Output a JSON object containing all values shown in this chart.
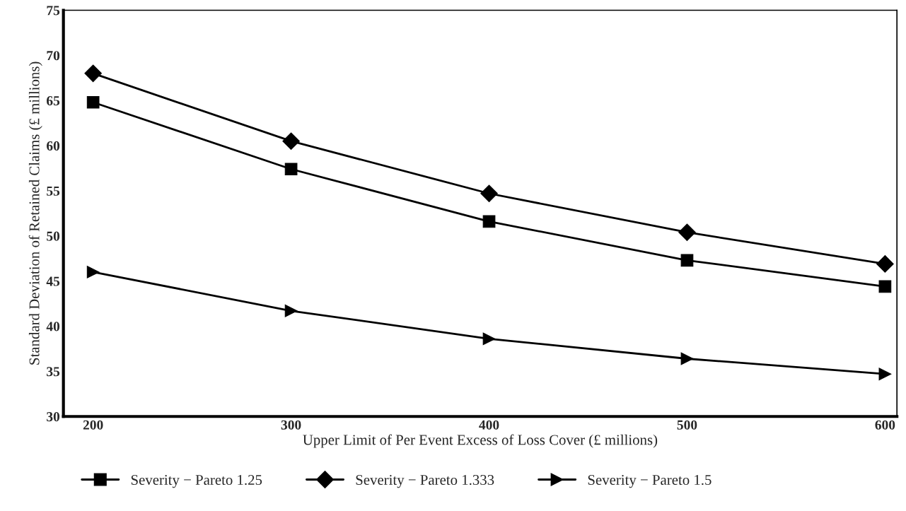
{
  "chart_data": {
    "type": "line",
    "xlabel": "Upper Limit of Per Event Excess of Loss Cover (£ millions)",
    "ylabel": "Standard Deviation of Retained Claims (£ millions)",
    "x": [
      200,
      300,
      400,
      500,
      600
    ],
    "xlim": [
      185,
      606
    ],
    "xticks": [
      200,
      300,
      400,
      500,
      600
    ],
    "ylim": [
      30,
      75
    ],
    "yticks": [
      30,
      35,
      40,
      45,
      50,
      55,
      60,
      65,
      70,
      75
    ],
    "grid": false,
    "legend": "bottom",
    "line_style": "solid",
    "series": [
      {
        "name": "Severity − Pareto 1.25",
        "color": "#000000",
        "marker": "square",
        "values": [
          64.8,
          57.4,
          51.6,
          47.3,
          44.4
        ]
      },
      {
        "name": "Severity − Pareto 1.333",
        "color": "#000000",
        "marker": "diamond",
        "values": [
          68.0,
          60.5,
          54.7,
          50.4,
          46.9
        ]
      },
      {
        "name": "Severity − Pareto 1.5",
        "color": "#000000",
        "marker": "triangle",
        "values": [
          46.0,
          41.7,
          38.6,
          36.4,
          34.7
        ]
      }
    ]
  }
}
